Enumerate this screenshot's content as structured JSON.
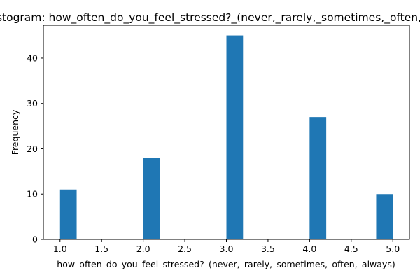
{
  "chart_data": {
    "type": "bar",
    "title": "Histogram: how_often_do_you_feel_stressed?_(never,_rarely,_sometimes,_often,_always)",
    "xlabel": "how_often_do_you_feel_stressed?_(never,_rarely,_sometimes,_often,_always)",
    "ylabel": "Frequency",
    "xlim": [
      0.8,
      5.2
    ],
    "ylim": [
      0,
      47.25
    ],
    "x_ticks": [
      "1.0",
      "1.5",
      "2.0",
      "2.5",
      "3.0",
      "3.5",
      "4.0",
      "4.5",
      "5.0"
    ],
    "y_ticks": [
      "0",
      "10",
      "20",
      "30",
      "40"
    ],
    "bins": [
      {
        "x0": 1.0,
        "x1": 1.2,
        "count": 11
      },
      {
        "x0": 2.0,
        "x1": 2.2,
        "count": 18
      },
      {
        "x0": 3.0,
        "x1": 3.2,
        "count": 45
      },
      {
        "x0": 4.0,
        "x1": 4.2,
        "count": 27
      },
      {
        "x0": 4.8,
        "x1": 5.0,
        "count": 10
      }
    ],
    "bar_color": "#1f77b4",
    "grid": false,
    "legend": "none"
  }
}
